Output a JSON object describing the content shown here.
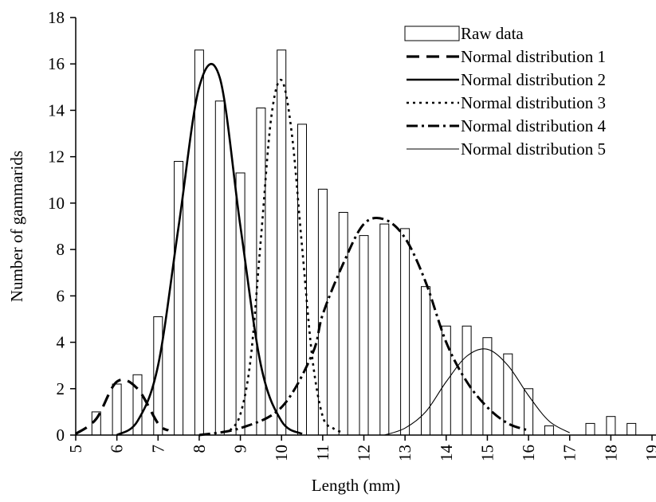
{
  "chart_data": {
    "type": "bar",
    "xlabel": "Length (mm)",
    "ylabel": "Number of gammarids",
    "xlim": [
      5,
      19
    ],
    "ylim": [
      0,
      18
    ],
    "x_ticks": [
      5,
      6,
      7,
      8,
      9,
      10,
      11,
      12,
      13,
      14,
      15,
      16,
      17,
      18,
      19
    ],
    "x_tick_labels": [
      "5",
      "6",
      "7",
      "8",
      "9",
      "10",
      "11",
      "12",
      "13",
      "14",
      "15",
      "16",
      "17",
      "18",
      "19"
    ],
    "y_ticks": [
      0,
      2,
      4,
      6,
      8,
      10,
      12,
      14,
      16,
      18
    ],
    "y_tick_labels": [
      "0",
      "2",
      "4",
      "6",
      "8",
      "10",
      "12",
      "14",
      "16",
      "18"
    ],
    "legend_position": "top-right",
    "grid": false,
    "bars": {
      "name": "Raw data",
      "x": [
        5.5,
        5.75,
        6.0,
        6.25,
        6.5,
        6.75,
        7.0,
        7.25,
        7.5,
        7.75,
        8.0,
        8.25,
        8.5,
        8.75,
        9.0,
        9.25,
        9.5,
        9.75,
        10.0,
        10.25,
        10.5,
        10.75,
        11.0,
        11.25,
        11.5,
        11.75,
        12.0,
        12.25,
        12.5,
        12.75,
        13.0,
        13.25,
        13.5,
        13.75,
        14.0,
        14.25,
        14.5,
        14.75,
        15.0,
        15.25,
        15.5,
        15.75,
        16.0,
        16.25,
        16.5,
        16.75,
        17.0,
        17.25,
        17.5,
        17.75,
        18.0,
        18.25,
        18.5,
        18.75
      ],
      "values": [
        1.0,
        0,
        2.2,
        0,
        2.6,
        0,
        5.1,
        0,
        11.8,
        0,
        16.6,
        0,
        14.4,
        0,
        11.3,
        0,
        14.1,
        0,
        16.6,
        0,
        13.4,
        0,
        10.6,
        0,
        9.6,
        0,
        8.6,
        0,
        9.1,
        0,
        8.9,
        0,
        6.4,
        0,
        4.7,
        0,
        4.7,
        0,
        4.2,
        0,
        3.5,
        0,
        2.0,
        0,
        0.4,
        0,
        0,
        0,
        0.5,
        0,
        0.8,
        0,
        0.5,
        0
      ]
    },
    "series": [
      {
        "name": "Normal distribution 1",
        "style": "long-dash",
        "x": [
          5.0,
          5.5,
          6.0,
          6.5,
          7.0,
          7.25
        ],
        "values": [
          0.05,
          0.7,
          2.3,
          2.0,
          0.5,
          0.2
        ]
      },
      {
        "name": "Normal distribution 2",
        "style": "solid-thick",
        "x": [
          6.0,
          6.5,
          7.0,
          7.5,
          8.0,
          8.5,
          9.0,
          9.5,
          10.0,
          10.5
        ],
        "values": [
          0.0,
          0.6,
          3.0,
          9.0,
          15.0,
          15.4,
          9.0,
          3.0,
          0.6,
          0.05
        ]
      },
      {
        "name": "Normal distribution 3",
        "style": "dotted",
        "x": [
          8.75,
          9.0,
          9.25,
          9.5,
          9.75,
          10.0,
          10.25,
          10.5,
          10.75,
          11.0,
          11.25,
          11.5
        ],
        "values": [
          0.2,
          0.9,
          3.3,
          8.5,
          13.7,
          15.3,
          13.0,
          8.1,
          3.3,
          0.8,
          0.3,
          0.1
        ]
      },
      {
        "name": "Normal distribution 4",
        "style": "dash-dot",
        "x": [
          8.0,
          9.0,
          10.0,
          10.75,
          11.0,
          11.5,
          12.0,
          12.5,
          13.0,
          13.5,
          14.0,
          14.5,
          15.0,
          15.5,
          16.0
        ],
        "values": [
          0.0,
          0.3,
          1.2,
          3.5,
          5.2,
          7.4,
          9.1,
          9.3,
          8.5,
          6.6,
          4.0,
          2.3,
          1.2,
          0.5,
          0.2
        ]
      },
      {
        "name": "Normal distribution 5",
        "style": "solid-thin",
        "x": [
          12.5,
          13.0,
          13.5,
          14.0,
          14.5,
          15.0,
          15.5,
          16.0,
          16.5,
          17.0
        ],
        "values": [
          0.0,
          0.3,
          1.0,
          2.3,
          3.4,
          3.7,
          3.0,
          1.7,
          0.6,
          0.1
        ]
      }
    ]
  }
}
